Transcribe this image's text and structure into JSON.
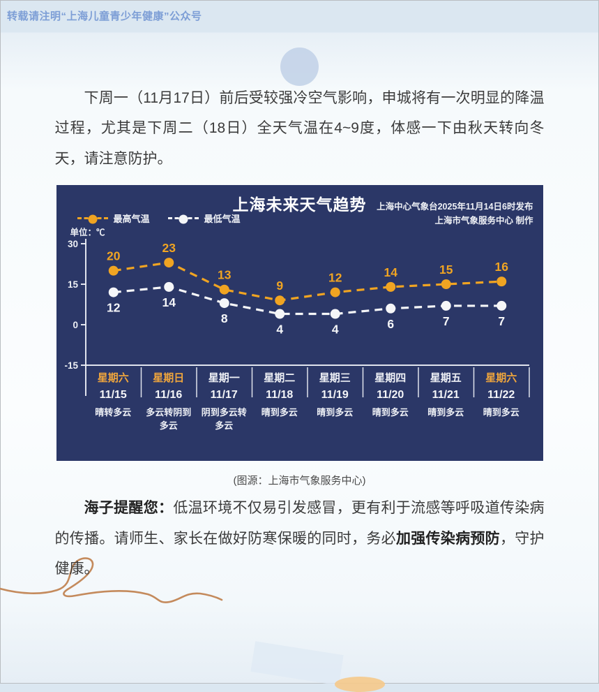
{
  "page": {
    "top_note": "转载请注明“上海儿童青少年健康”公众号",
    "intro_paragraph": "下周一（11月17日）前后受较强冷空气影响，申城将有一次明显的降温过程，尤其是下周二（18日）全天气温在4~9度，体感一下由秋天转向冬天，请注意防护。",
    "caption": "(图源：上海市气象服务中心)",
    "reminder": {
      "lead": "海子提醒您：",
      "text1": "低温环境不仅易引发感冒，更有利于流感等呼吸道传染病的传播。请师生、家长在做好防寒保暖的同时，务必",
      "bold": "加强传染病预防",
      "text2": "，守护健康。"
    }
  },
  "chart_data": {
    "type": "line",
    "title": "上海未来天气趋势",
    "unit_label": "单位：℃",
    "issue_line1": "上海中心气象台2025年11月14日6时发布",
    "issue_line2": "上海市气象服务中心 制作",
    "background_color": "#2b3767",
    "ylim": [
      -15,
      30
    ],
    "yticks": [
      30,
      15,
      0,
      -15
    ],
    "grid": false,
    "legend_position": "top-left",
    "legend": [
      {
        "name": "最高气温",
        "color": "#f0a422"
      },
      {
        "name": "最低气温",
        "color": "#f5f6f8"
      }
    ],
    "categories": [
      {
        "day": "星期六",
        "date": "11/15",
        "weather": "晴转多云",
        "weekend": true
      },
      {
        "day": "星期日",
        "date": "11/16",
        "weather": "多云转阴到多云",
        "weekend": true
      },
      {
        "day": "星期一",
        "date": "11/17",
        "weather": "阴到多云转多云",
        "weekend": false
      },
      {
        "day": "星期二",
        "date": "11/18",
        "weather": "晴到多云",
        "weekend": false
      },
      {
        "day": "星期三",
        "date": "11/19",
        "weather": "晴到多云",
        "weekend": false
      },
      {
        "day": "星期四",
        "date": "11/20",
        "weather": "晴到多云",
        "weekend": false
      },
      {
        "day": "星期五",
        "date": "11/21",
        "weather": "晴到多云",
        "weekend": false
      },
      {
        "day": "星期六",
        "date": "11/22",
        "weather": "晴到多云",
        "weekend": true
      }
    ],
    "series": [
      {
        "name": "最高气温",
        "color": "#f0a422",
        "values": [
          20,
          23,
          13,
          9,
          12,
          14,
          15,
          16
        ],
        "label_pos": "above"
      },
      {
        "name": "最低气温",
        "color": "#f5f6f8",
        "values": [
          12,
          14,
          8,
          4,
          4,
          6,
          7,
          7
        ],
        "label_pos": "below"
      }
    ]
  }
}
